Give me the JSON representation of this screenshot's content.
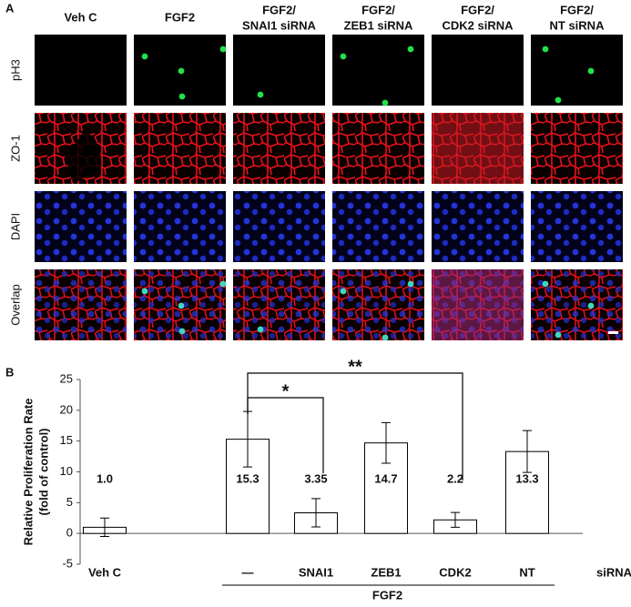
{
  "panel_labels": [
    "A",
    "B"
  ],
  "panel_a": {
    "columns": [
      [
        "Veh C"
      ],
      [
        "FGF2"
      ],
      [
        "FGF2/",
        "SNAI1 siRNA"
      ],
      [
        "FGF2/",
        "ZEB1 siRNA"
      ],
      [
        "FGF2/",
        "CDK2 siRNA"
      ],
      [
        "FGF2/",
        "NT siRNA"
      ]
    ],
    "rows": [
      "pH3",
      "ZO-1",
      "DAPI",
      "Overlap"
    ]
  },
  "chart_data": {
    "type": "bar",
    "y_label": [
      "Relative Proliferation Rate",
      "(fold of control)"
    ],
    "categories": [
      "Veh C",
      "—",
      "SNAI1",
      "ZEB1",
      "CDK2",
      "NT"
    ],
    "values": [
      1.0,
      15.3,
      3.35,
      14.7,
      2.2,
      13.3
    ],
    "value_labels": [
      "1.0",
      "15.3",
      "3.35",
      "14.7",
      "2.2",
      "13.3"
    ],
    "errors": [
      1.5,
      4.5,
      2.3,
      3.3,
      1.2,
      3.4
    ],
    "color": "#ffffff",
    "edge_color": "#000000",
    "ylim": [
      -5,
      25
    ],
    "yticks": [
      -5,
      0,
      5,
      10,
      15,
      20,
      25
    ],
    "category_axis_label": "siRNA",
    "group_label": "FGF2",
    "significance": [
      "*",
      "**"
    ]
  }
}
